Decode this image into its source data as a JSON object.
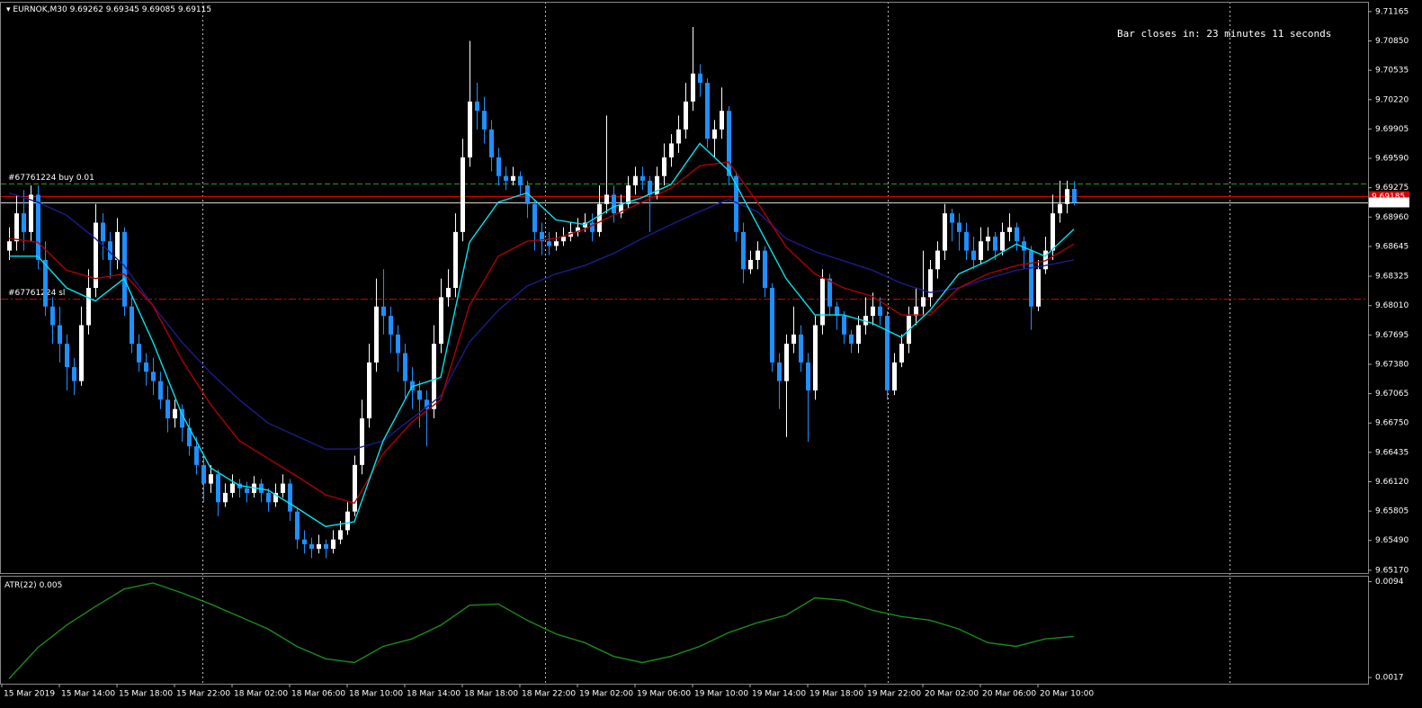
{
  "chart_data": {
    "type": "candlestick",
    "symbol": "EURNOK,M30",
    "bull_color": "#ffffff",
    "bear_color": "#1e90ff",
    "ylim": [
      9.6514,
      9.7127
    ],
    "yticks": [
      9.71165,
      {
        "value": 9.7085,
        "label": "9.70850"
      },
      9.70535,
      {
        "value": 9.7022,
        "label": "9.70220"
      },
      9.69905,
      {
        "value": 9.6959,
        "label": "9.69590"
      },
      9.69275,
      {
        "value": 9.6896,
        "label": "9.68960"
      },
      9.68645,
      9.68325,
      {
        "value": 9.6801,
        "label": "9.68010"
      },
      9.67695,
      {
        "value": 9.6738,
        "label": "9.67380"
      },
      9.67065,
      {
        "value": 9.6675,
        "label": "9.66750"
      },
      9.66435,
      {
        "value": 9.6612,
        "label": "9.66120"
      },
      9.65805,
      {
        "value": 9.6549,
        "label": "9.65490"
      },
      {
        "value": 9.6517,
        "label": "9.65170"
      }
    ],
    "time_labels": [
      "15 Mar 2019",
      "15 Mar 14:00",
      "15 Mar 18:00",
      "15 Mar 22:00",
      "18 Mar 02:00",
      "18 Mar 06:00",
      "18 Mar 10:00",
      "18 Mar 14:00",
      "18 Mar 18:00",
      "18 Mar 22:00",
      "19 Mar 02:00",
      "19 Mar 06:00",
      "19 Mar 10:00",
      "19 Mar 14:00",
      "19 Mar 18:00",
      "19 Mar 22:00",
      "20 Mar 02:00",
      "20 Mar 06:00",
      "20 Mar 10:00"
    ],
    "ohlc": [
      [
        9.686,
        9.6885,
        9.685,
        9.687
      ],
      [
        9.687,
        9.692,
        9.686,
        9.69
      ],
      [
        9.69,
        9.6925,
        9.686,
        9.688
      ],
      [
        9.688,
        9.693,
        9.687,
        9.692
      ],
      [
        9.692,
        9.693,
        9.684,
        9.685
      ],
      [
        9.685,
        9.687,
        9.679,
        9.68
      ],
      [
        9.68,
        9.681,
        9.676,
        9.678
      ],
      [
        9.678,
        9.68,
        9.674,
        9.676
      ],
      [
        9.676,
        9.677,
        9.671,
        9.6735
      ],
      [
        9.6735,
        9.6745,
        9.6705,
        9.672
      ],
      [
        9.672,
        9.68,
        9.6715,
        9.678
      ],
      [
        9.678,
        9.684,
        9.677,
        9.682
      ],
      [
        9.682,
        9.691,
        9.681,
        9.689
      ],
      [
        9.689,
        9.69,
        9.685,
        9.687
      ],
      [
        9.687,
        9.688,
        9.683,
        9.685
      ],
      [
        9.685,
        9.6895,
        9.684,
        9.688
      ],
      [
        9.688,
        9.6885,
        9.679,
        9.68
      ],
      [
        9.68,
        9.681,
        9.675,
        9.676
      ],
      [
        9.676,
        9.677,
        9.673,
        9.674
      ],
      [
        9.674,
        9.675,
        9.6715,
        9.673
      ],
      [
        9.673,
        9.6745,
        9.6705,
        9.672
      ],
      [
        9.672,
        9.673,
        9.669,
        9.67
      ],
      [
        9.67,
        9.6715,
        9.6665,
        9.668
      ],
      [
        9.668,
        9.67,
        9.667,
        9.669
      ],
      [
        9.669,
        9.6695,
        9.6655,
        9.667
      ],
      [
        9.667,
        9.668,
        9.664,
        9.665
      ],
      [
        9.665,
        9.666,
        9.662,
        9.663
      ],
      [
        9.663,
        9.664,
        9.659,
        9.661
      ],
      [
        9.661,
        9.663,
        9.66,
        9.662
      ],
      [
        9.662,
        9.6625,
        9.6575,
        9.659
      ],
      [
        9.659,
        9.661,
        9.6585,
        9.66
      ],
      [
        9.66,
        9.662,
        9.6595,
        9.661
      ],
      [
        9.661,
        9.6615,
        9.6595,
        9.6605
      ],
      [
        9.6605,
        9.6612,
        9.659,
        9.66
      ],
      [
        9.66,
        9.6618,
        9.6595,
        9.661
      ],
      [
        9.661,
        9.6615,
        9.659,
        9.66
      ],
      [
        9.66,
        9.6605,
        9.658,
        9.659
      ],
      [
        9.659,
        9.661,
        9.6585,
        9.66
      ],
      [
        9.66,
        9.662,
        9.6595,
        9.661
      ],
      [
        9.661,
        9.6615,
        9.657,
        9.658
      ],
      [
        9.658,
        9.6585,
        9.654,
        9.655
      ],
      [
        9.655,
        9.656,
        9.6535,
        9.6545
      ],
      [
        9.6545,
        9.6552,
        9.653,
        9.654
      ],
      [
        9.654,
        9.6555,
        9.6535,
        9.6545
      ],
      [
        9.6545,
        9.655,
        9.653,
        9.654
      ],
      [
        9.654,
        9.656,
        9.6535,
        9.655
      ],
      [
        9.655,
        9.657,
        9.6545,
        9.656
      ],
      [
        9.656,
        9.659,
        9.6555,
        9.658
      ],
      [
        9.658,
        9.664,
        9.6575,
        9.663
      ],
      [
        9.663,
        9.67,
        9.662,
        9.668
      ],
      [
        9.668,
        9.676,
        9.667,
        9.674
      ],
      [
        9.674,
        9.683,
        9.673,
        9.68
      ],
      [
        9.68,
        9.684,
        9.677,
        9.679
      ],
      [
        9.679,
        9.68,
        9.675,
        9.677
      ],
      [
        9.677,
        9.678,
        9.673,
        9.675
      ],
      [
        9.675,
        9.676,
        9.67,
        9.672
      ],
      [
        9.672,
        9.6735,
        9.669,
        9.671
      ],
      [
        9.671,
        9.672,
        9.667,
        9.67
      ],
      [
        9.67,
        9.671,
        9.665,
        9.669
      ],
      [
        9.669,
        9.678,
        9.668,
        9.676
      ],
      [
        9.676,
        9.683,
        9.675,
        9.681
      ],
      [
        9.681,
        9.684,
        9.68,
        9.682
      ],
      [
        9.682,
        9.69,
        9.681,
        9.688
      ],
      [
        9.688,
        9.698,
        9.687,
        9.696
      ],
      [
        9.696,
        9.7085,
        9.695,
        9.702
      ],
      [
        9.702,
        9.704,
        9.699,
        9.701
      ],
      [
        9.701,
        9.7025,
        9.6975,
        9.699
      ],
      [
        9.699,
        9.7,
        9.6945,
        9.696
      ],
      [
        9.696,
        9.697,
        9.693,
        9.694
      ],
      [
        9.694,
        9.695,
        9.6925,
        9.6935
      ],
      [
        9.6935,
        9.695,
        9.693,
        9.694
      ],
      [
        9.694,
        9.6945,
        9.692,
        9.693
      ],
      [
        9.693,
        9.6935,
        9.6895,
        9.691
      ],
      [
        9.691,
        9.6915,
        9.686,
        9.688
      ],
      [
        9.688,
        9.689,
        9.6855,
        9.687
      ],
      [
        9.687,
        9.688,
        9.6855,
        9.6865
      ],
      [
        9.6865,
        9.688,
        9.686,
        9.687
      ],
      [
        9.687,
        9.6885,
        9.6865,
        9.6875
      ],
      [
        9.6875,
        9.689,
        9.687,
        9.688
      ],
      [
        9.688,
        9.6895,
        9.6875,
        9.6885
      ],
      [
        9.6885,
        9.69,
        9.688,
        9.689
      ],
      [
        9.689,
        9.69,
        9.687,
        9.688
      ],
      [
        9.688,
        9.693,
        9.6875,
        9.691
      ],
      [
        9.691,
        9.7005,
        9.69,
        9.692
      ],
      [
        9.692,
        9.693,
        9.689,
        9.69
      ],
      [
        9.69,
        9.692,
        9.6895,
        9.691
      ],
      [
        9.691,
        9.694,
        9.6905,
        9.693
      ],
      [
        9.693,
        9.695,
        9.692,
        9.694
      ],
      [
        9.694,
        9.695,
        9.6925,
        9.6935
      ],
      [
        9.6935,
        9.694,
        9.688,
        9.692
      ],
      [
        9.692,
        9.695,
        9.6915,
        9.694
      ],
      [
        9.694,
        9.6975,
        9.693,
        9.696
      ],
      [
        9.696,
        9.6985,
        9.695,
        9.6975
      ],
      [
        9.6975,
        9.7005,
        9.6965,
        9.699
      ],
      [
        9.699,
        9.704,
        9.698,
        9.702
      ],
      [
        9.702,
        9.71,
        9.701,
        9.705
      ],
      [
        9.705,
        9.706,
        9.7025,
        9.704
      ],
      [
        9.704,
        9.7045,
        9.697,
        9.698
      ],
      [
        9.698,
        9.7,
        9.696,
        9.699
      ],
      [
        9.699,
        9.7035,
        9.698,
        9.701
      ],
      [
        9.701,
        9.7015,
        9.693,
        9.694
      ],
      [
        9.694,
        9.6945,
        9.687,
        9.688
      ],
      [
        9.688,
        9.689,
        9.6825,
        9.684
      ],
      [
        9.684,
        9.686,
        9.6835,
        9.685
      ],
      [
        9.685,
        9.687,
        9.684,
        9.686
      ],
      [
        9.686,
        9.6865,
        9.681,
        9.682
      ],
      [
        9.682,
        9.6825,
        9.673,
        9.674
      ],
      [
        9.674,
        9.675,
        9.669,
        9.672
      ],
      [
        9.672,
        9.677,
        9.666,
        9.676
      ],
      [
        9.676,
        9.68,
        9.675,
        9.677
      ],
      [
        9.677,
        9.678,
        9.673,
        9.674
      ],
      [
        9.674,
        9.675,
        9.6655,
        9.671
      ],
      [
        9.671,
        9.679,
        9.67,
        9.678
      ],
      [
        9.678,
        9.684,
        9.677,
        9.683
      ],
      [
        9.683,
        9.6835,
        9.679,
        9.68
      ],
      [
        9.68,
        9.6805,
        9.6775,
        9.679
      ],
      [
        9.679,
        9.6795,
        9.676,
        9.677
      ],
      [
        9.677,
        9.6775,
        9.675,
        9.676
      ],
      [
        9.676,
        9.679,
        9.675,
        9.678
      ],
      [
        9.678,
        9.681,
        9.677,
        9.679
      ],
      [
        9.679,
        9.6815,
        9.678,
        9.68
      ],
      [
        9.68,
        9.681,
        9.678,
        9.679
      ],
      [
        9.679,
        9.6795,
        9.67,
        9.671
      ],
      [
        9.671,
        9.675,
        9.6705,
        9.674
      ],
      [
        9.674,
        9.677,
        9.6735,
        9.676
      ],
      [
        9.676,
        9.68,
        9.675,
        9.679
      ],
      [
        9.679,
        9.682,
        9.678,
        9.68
      ],
      [
        9.68,
        9.686,
        9.679,
        9.681
      ],
      [
        9.681,
        9.685,
        9.68,
        9.684
      ],
      [
        9.684,
        9.687,
        9.683,
        9.686
      ],
      [
        9.686,
        9.691,
        9.685,
        9.69
      ],
      [
        9.69,
        9.6905,
        9.687,
        9.689
      ],
      [
        9.689,
        9.69,
        9.686,
        9.688
      ],
      [
        9.688,
        9.689,
        9.685,
        9.686
      ],
      [
        9.686,
        9.6875,
        9.684,
        9.685
      ],
      [
        9.685,
        9.6885,
        9.6845,
        9.687
      ],
      [
        9.687,
        9.6885,
        9.686,
        9.6875
      ],
      [
        9.6875,
        9.688,
        9.685,
        9.686
      ],
      [
        9.686,
        9.689,
        9.6855,
        9.688
      ],
      [
        9.688,
        9.69,
        9.687,
        9.6885
      ],
      [
        9.6885,
        9.689,
        9.686,
        9.687
      ],
      [
        9.687,
        9.6875,
        9.684,
        9.686
      ],
      [
        9.686,
        9.6865,
        9.6775,
        9.68
      ],
      [
        9.68,
        9.685,
        9.6795,
        9.684
      ],
      [
        9.684,
        9.6875,
        9.6835,
        9.686
      ],
      [
        9.686,
        9.692,
        9.685,
        9.69
      ],
      [
        9.69,
        9.6935,
        9.689,
        9.691
      ],
      [
        9.691,
        9.6935,
        9.69,
        9.6926
      ],
      [
        9.69262,
        9.69345,
        9.69085,
        9.69115
      ]
    ],
    "sample_index": [
      0,
      4,
      8,
      12,
      16,
      20,
      24,
      28,
      32,
      36,
      40,
      44,
      48,
      52,
      56,
      60,
      64,
      68,
      72,
      76,
      80,
      84,
      88,
      92,
      96,
      100,
      104,
      108,
      112,
      116,
      120,
      124,
      128,
      132,
      136,
      140,
      144,
      148
    ],
    "ma": [
      {
        "color": "#00e5ee",
        "values": [
          9.6854,
          9.6854,
          9.682,
          9.6806,
          9.683,
          9.6762,
          9.6685,
          9.6627,
          9.6608,
          9.6603,
          9.6584,
          9.6564,
          9.6569,
          9.6656,
          9.6714,
          9.6724,
          9.6869,
          9.6912,
          9.6922,
          9.6893,
          9.6888,
          9.6907,
          9.6917,
          9.6931,
          9.6975,
          9.6946,
          9.6888,
          9.683,
          9.6791,
          9.6791,
          9.6782,
          9.6767,
          9.6796,
          9.6835,
          9.6849,
          9.6867,
          9.6854,
          9.6883
        ]
      },
      {
        "color": "#b00000",
        "values": [
          9.6873,
          9.6869,
          9.6839,
          9.683,
          9.6835,
          9.6801,
          9.6743,
          9.6695,
          9.6656,
          9.6637,
          9.6618,
          9.6598,
          9.6589,
          9.6642,
          9.6676,
          9.67,
          9.6801,
          9.6854,
          9.687,
          9.6873,
          9.6883,
          9.6898,
          9.6912,
          9.6927,
          9.6951,
          9.6955,
          9.6912,
          9.6864,
          9.6835,
          9.682,
          9.6811,
          9.6791,
          9.6791,
          9.682,
          9.6835,
          9.6844,
          9.6849,
          9.6867
        ]
      },
      {
        "color": "#1c1c8c",
        "values": [
          9.6922,
          9.6912,
          9.6898,
          9.6873,
          9.6844,
          9.6801,
          9.6762,
          9.6729,
          9.67,
          9.6675,
          9.6661,
          9.6647,
          9.6647,
          9.6656,
          9.668,
          9.6704,
          9.6762,
          9.6796,
          9.6822,
          9.6835,
          9.6844,
          9.6857,
          9.6873,
          9.6888,
          9.6902,
          9.6915,
          9.6902,
          9.6873,
          9.6859,
          9.6849,
          9.6839,
          9.6825,
          9.6815,
          9.682,
          9.683,
          9.6839,
          9.6844,
          9.685
        ]
      }
    ],
    "ask": 9.69185,
    "ask_color": "#d40000",
    "orders": [
      {
        "label": "#67761224 buy 0.01",
        "price": 9.6932,
        "color": "#1f9e1f"
      },
      {
        "label": "#67761224 sl",
        "price": 9.6808,
        "color": "#d40000"
      }
    ],
    "countdown": "Bar closes in: 23 minutes 11 seconds",
    "atr": {
      "type": "line",
      "label": "ATR(22)",
      "color": "#1a8c1a",
      "ylim": [
        0.0012,
        0.0098
      ],
      "yticks": [
        0.0094,
        0.0017
      ],
      "values": [
        0.0016,
        0.0041,
        0.0059,
        0.0074,
        0.0088,
        0.0093,
        0.0085,
        0.0076,
        0.0066,
        0.0056,
        0.0042,
        0.0032,
        0.0029,
        0.0042,
        0.0048,
        0.0059,
        0.0075,
        0.0076,
        0.0063,
        0.0052,
        0.0045,
        0.0034,
        0.0029,
        0.0034,
        0.0042,
        0.0053,
        0.0061,
        0.0067,
        0.0081,
        0.0079,
        0.0071,
        0.0066,
        0.0063,
        0.0056,
        0.0045,
        0.0042,
        0.0048,
        0.005
      ]
    }
  }
}
